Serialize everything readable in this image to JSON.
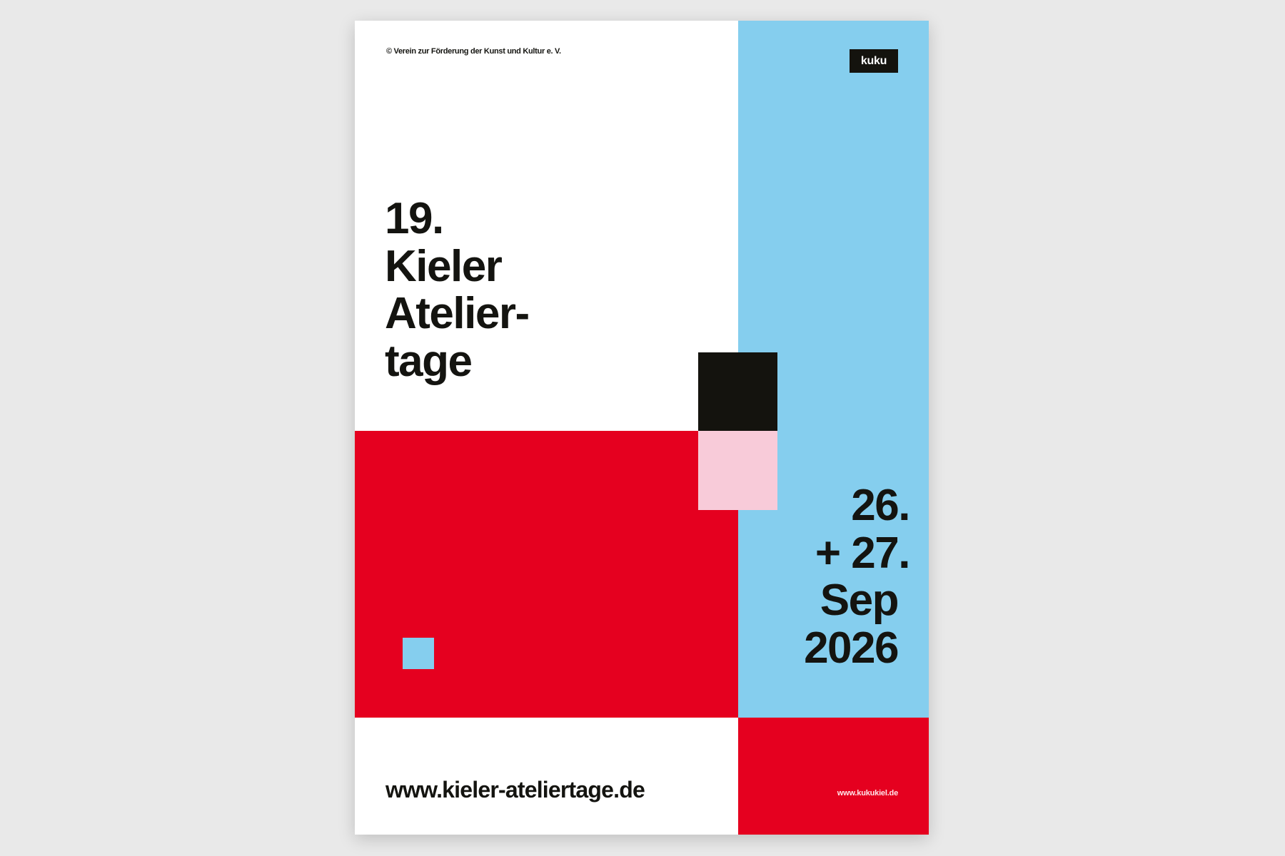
{
  "poster": {
    "copyright": "© Verein zur Förderung der Kunst und Kultur e. V.",
    "logo": "kuku",
    "title_lines": [
      "19.",
      "Kieler",
      "Atelier-",
      "tage"
    ],
    "date_lines": [
      "26.",
      "+ 27.",
      "Sep",
      "2026"
    ],
    "website": "www.kieler-ateliertage.de",
    "org_website": "www.kukukiel.de"
  },
  "colors": {
    "red": "#e5001f",
    "light_blue": "#85ceee",
    "black": "#14130e",
    "pink": "#f8cbd9",
    "white": "#ffffff",
    "background": "#e9e9e9"
  }
}
